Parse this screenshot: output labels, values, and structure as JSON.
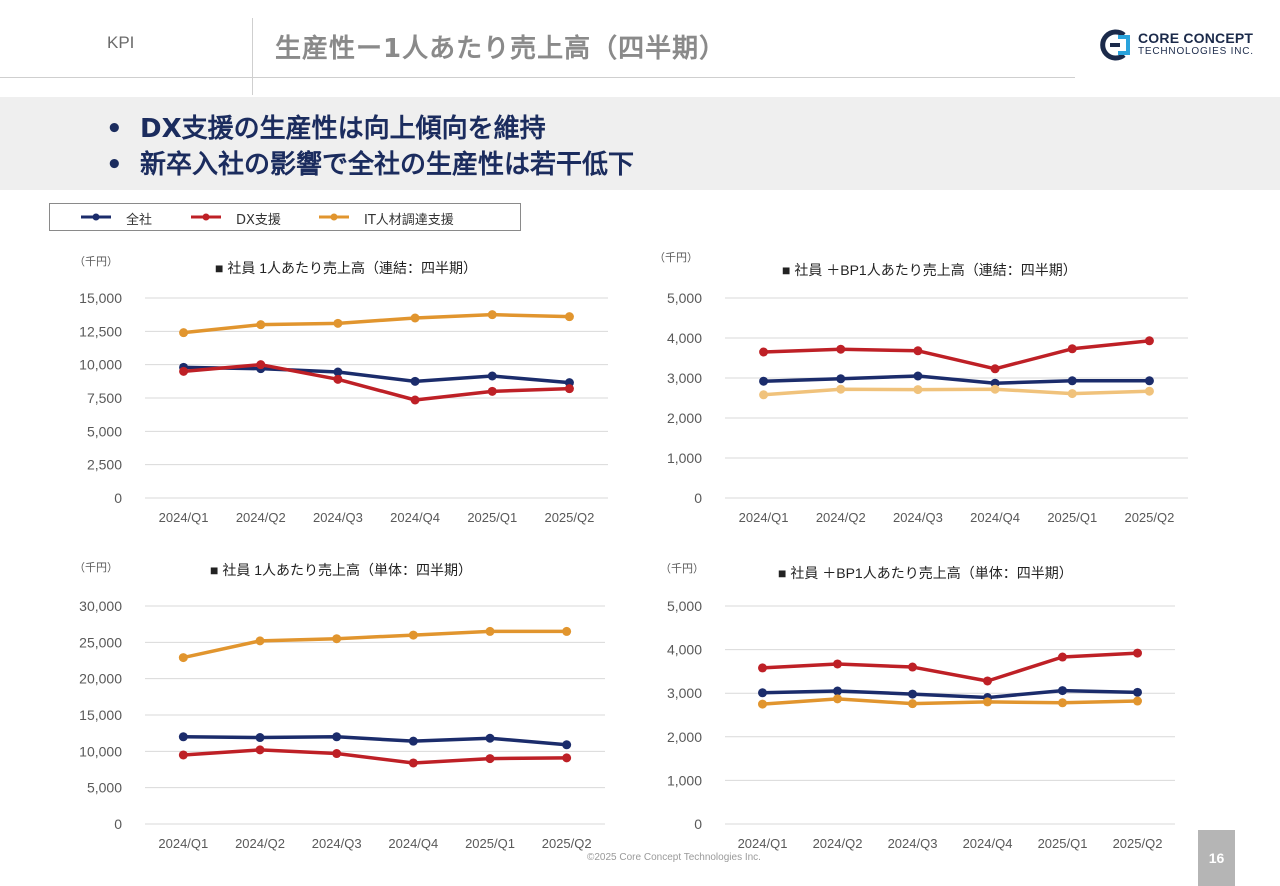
{
  "header": {
    "section": "KPI",
    "title": "生産性ー1人あたり売上高（四半期）",
    "logo_line1": "CORE CONCEPT",
    "logo_line2": "TECHNOLOGIES INC."
  },
  "summary": {
    "bullets": [
      "DX支援の生産性は向上傾向を維持",
      "新卒入社の影響で全社の生産性は若干低下"
    ]
  },
  "legend": {
    "items": [
      {
        "label": "全社",
        "color": "#1b2c6b"
      },
      {
        "label": "DX支援",
        "color": "#be2026"
      },
      {
        "label": "IT人材調達支援",
        "color": "#e1952e"
      }
    ]
  },
  "colors": {
    "company": "#1b2c6b",
    "dx": "#be2026",
    "it": "#e1952e",
    "it_light": "#f0c27b",
    "grid": "#d9d9d9",
    "axis_text": "#595959"
  },
  "chart_data": [
    {
      "type": "line",
      "title": "■ 社員 1人あたり売上高（連結：四半期）",
      "unit": "（千円）",
      "categories": [
        "2024/Q1",
        "2024/Q2",
        "2024/Q3",
        "2024/Q4",
        "2025/Q1",
        "2025/Q2"
      ],
      "ylim": [
        0,
        15000
      ],
      "yticks": [
        0,
        2500,
        5000,
        7500,
        10000,
        12500,
        15000
      ],
      "ytick_labels": [
        "0",
        "2,500",
        "5,000",
        "7,500",
        "10,000",
        "12,500",
        "15,000"
      ],
      "grid": true,
      "series": [
        {
          "name": "IT人材調達支援",
          "color": "#e1952e",
          "values": [
            12400,
            13000,
            13100,
            13500,
            13750,
            13600
          ]
        },
        {
          "name": "全社",
          "color": "#1b2c6b",
          "values": [
            9800,
            9700,
            9450,
            8750,
            9150,
            8650
          ]
        },
        {
          "name": "DX支援",
          "color": "#be2026",
          "values": [
            9500,
            10000,
            8900,
            7350,
            8000,
            8200
          ]
        }
      ]
    },
    {
      "type": "line",
      "title": "■ 社員 ＋BP1人あたり売上高（連結：四半期）",
      "unit": "（千円）",
      "categories": [
        "2024/Q1",
        "2024/Q2",
        "2024/Q3",
        "2024/Q4",
        "2025/Q1",
        "2025/Q2"
      ],
      "ylim": [
        0,
        5000
      ],
      "yticks": [
        0,
        1000,
        2000,
        3000,
        4000,
        5000
      ],
      "ytick_labels": [
        "0",
        "1,000",
        "2,000",
        "3,000",
        "4,000",
        "5,000"
      ],
      "grid": true,
      "series": [
        {
          "name": "DX支援",
          "color": "#be2026",
          "values": [
            3650,
            3720,
            3680,
            3230,
            3730,
            3930
          ]
        },
        {
          "name": "全社",
          "color": "#1b2c6b",
          "values": [
            2920,
            2980,
            3050,
            2870,
            2930,
            2930
          ]
        },
        {
          "name": "IT人材調達支援",
          "color": "#f0c27b",
          "values": [
            2580,
            2720,
            2710,
            2720,
            2610,
            2670
          ]
        }
      ]
    },
    {
      "type": "line",
      "title": "■ 社員 1人あたり売上高（単体：四半期）",
      "unit": "（千円）",
      "categories": [
        "2024/Q1",
        "2024/Q2",
        "2024/Q3",
        "2024/Q4",
        "2025/Q1",
        "2025/Q2"
      ],
      "ylim": [
        0,
        30000
      ],
      "yticks": [
        0,
        5000,
        10000,
        15000,
        20000,
        25000,
        30000
      ],
      "ytick_labels": [
        "0",
        "5,000",
        "10,000",
        "15,000",
        "20,000",
        "25,000",
        "30,000"
      ],
      "grid": true,
      "series": [
        {
          "name": "IT人材調達支援",
          "color": "#e1952e",
          "values": [
            22900,
            25200,
            25500,
            26000,
            26500,
            26500
          ]
        },
        {
          "name": "全社",
          "color": "#1b2c6b",
          "values": [
            12000,
            11900,
            12000,
            11400,
            11800,
            10900
          ]
        },
        {
          "name": "DX支援",
          "color": "#be2026",
          "values": [
            9500,
            10200,
            9700,
            8400,
            9000,
            9100
          ]
        }
      ]
    },
    {
      "type": "line",
      "title": "■ 社員 ＋BP1人あたり売上高（単体：四半期）",
      "unit": "（千円）",
      "categories": [
        "2024/Q1",
        "2024/Q2",
        "2024/Q3",
        "2024/Q4",
        "2025/Q1",
        "2025/Q2"
      ],
      "ylim": [
        0,
        5000
      ],
      "yticks": [
        0,
        1000,
        2000,
        3000,
        4000,
        5000
      ],
      "ytick_labels": [
        "0",
        "1,000",
        "2,000",
        "3,000",
        "4,000",
        "5,000"
      ],
      "grid": true,
      "series": [
        {
          "name": "DX支援",
          "color": "#be2026",
          "values": [
            3580,
            3670,
            3600,
            3280,
            3830,
            3920
          ]
        },
        {
          "name": "全社",
          "color": "#1b2c6b",
          "values": [
            3010,
            3050,
            2980,
            2900,
            3060,
            3020
          ]
        },
        {
          "name": "IT人材調達支援",
          "color": "#e1952e",
          "values": [
            2750,
            2870,
            2760,
            2800,
            2780,
            2820
          ]
        }
      ]
    }
  ],
  "footer": {
    "copyright": "©2025 Core Concept Technologies Inc.",
    "page_number": "16"
  }
}
